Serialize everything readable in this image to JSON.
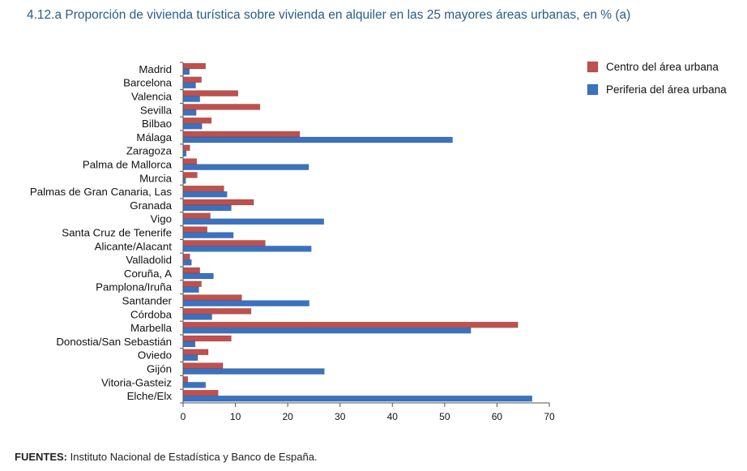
{
  "title": "4.12.a  Proporción de vivienda turística sobre vivienda en alquiler en las 25 mayores áreas urbanas, en % (a)",
  "source": {
    "label": "FUENTES:",
    "text": "Instituto Nacional de Estadística y Banco de España."
  },
  "chart_data": {
    "type": "bar",
    "orientation": "horizontal",
    "categories": [
      "Madrid",
      "Barcelona",
      "Valencia",
      "Sevilla",
      "Bilbao",
      "Málaga",
      "Zaragoza",
      "Palma de Mallorca",
      "Murcia",
      "Palmas de Gran Canaria, Las",
      "Granada",
      "Vigo",
      "Santa Cruz de Tenerife",
      "Alicante/Alacant",
      "Valladolid",
      "Coruña, A",
      "Pamplona/Iruña",
      "Santander",
      "Córdoba",
      "Marbella",
      "Donostia/San Sebastián",
      "Oviedo",
      "Gijón",
      "Vitoria-Gasteiz",
      "Elche/Elx"
    ],
    "series": [
      {
        "name": "Centro del área urbana",
        "color": "#c0504d",
        "values": [
          4.3,
          3.5,
          10.5,
          14.7,
          5.4,
          22.3,
          1.3,
          2.6,
          2.7,
          7.8,
          13.5,
          5.2,
          4.6,
          15.7,
          1.3,
          3.2,
          3.5,
          11.2,
          13.0,
          64.0,
          9.2,
          4.8,
          7.6,
          0.9,
          6.7
        ]
      },
      {
        "name": "Periferia del área urbana",
        "color": "#3a72c0",
        "values": [
          1.2,
          2.4,
          3.2,
          2.5,
          3.6,
          51.5,
          0.6,
          24.0,
          0.5,
          8.4,
          9.2,
          26.9,
          9.6,
          24.5,
          1.6,
          5.8,
          3.0,
          24.1,
          5.5,
          55.0,
          2.3,
          2.8,
          27.0,
          4.3,
          66.7
        ]
      }
    ],
    "xlim": [
      0,
      70
    ],
    "xticks": [
      0,
      10,
      20,
      30,
      40,
      50,
      60,
      70
    ],
    "legend_position": "top-right",
    "grid": false
  }
}
